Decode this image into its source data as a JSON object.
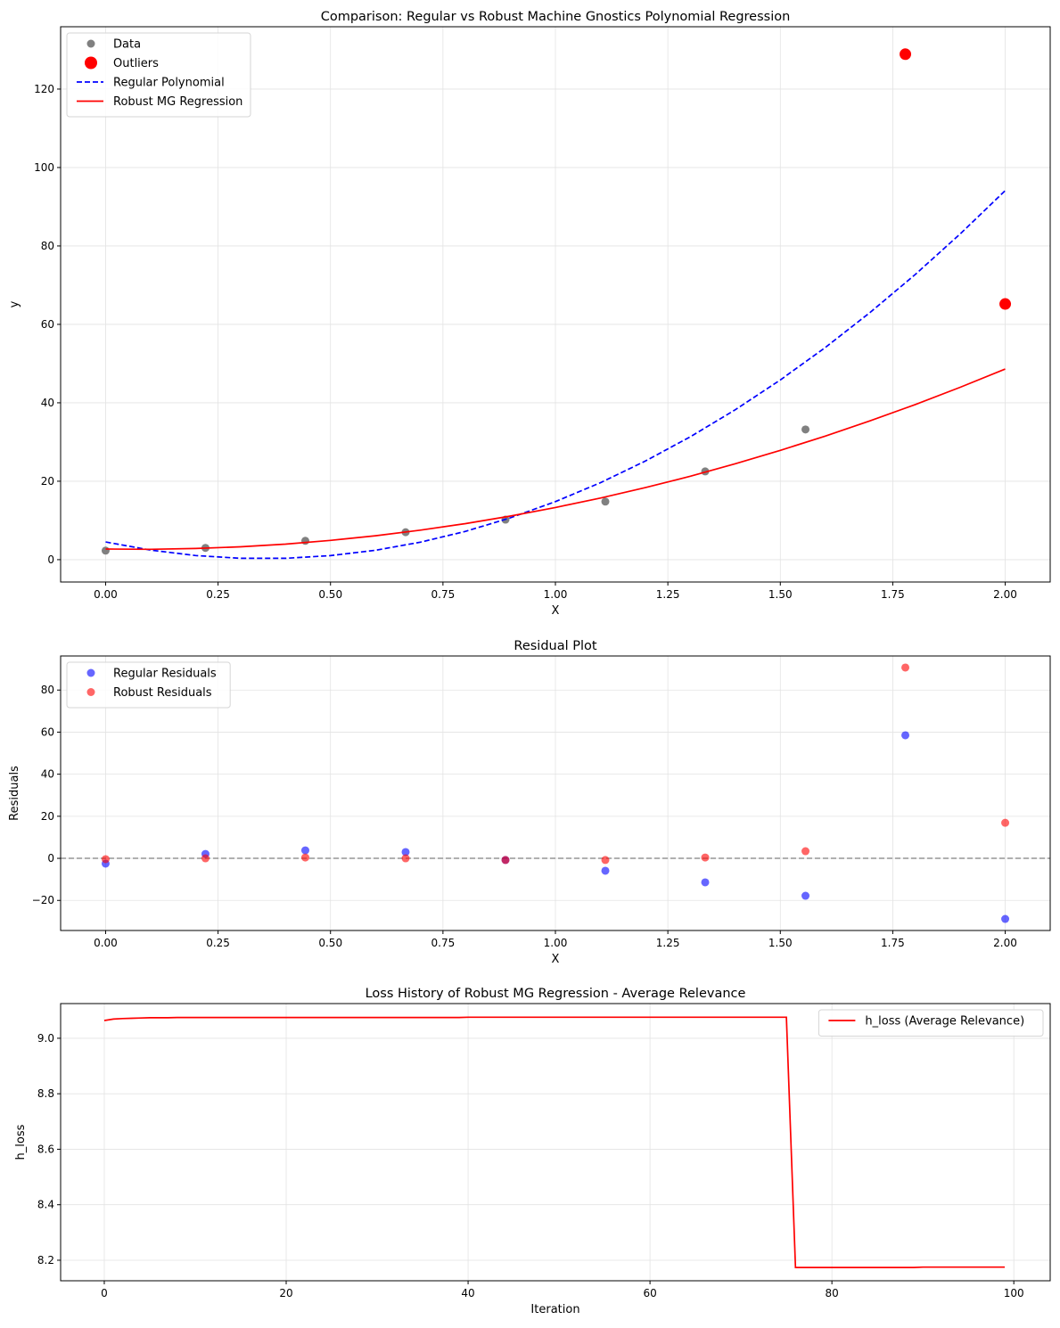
{
  "chart_data": [
    {
      "type": "scatter+line",
      "title": "Comparison: Regular vs Robust Machine Gnostics Polynomial Regression",
      "xlabel": "X",
      "ylabel": "y",
      "xlim": [
        -0.1,
        2.1
      ],
      "ylim": [
        -5.7,
        135.9
      ],
      "xticks": [
        "0.00",
        "0.25",
        "0.50",
        "0.75",
        "1.00",
        "1.25",
        "1.50",
        "1.75",
        "2.00"
      ],
      "yticks": [
        "0",
        "20",
        "40",
        "60",
        "80",
        "100",
        "120"
      ],
      "grid": true,
      "legend_position": "top-left",
      "series": [
        {
          "name": "Data",
          "kind": "scatter",
          "color": "#808080",
          "x": [
            0,
            0.222,
            0.444,
            0.667,
            0.889,
            1.111,
            1.333,
            1.556
          ],
          "y": [
            2.3,
            3.0,
            4.8,
            7.0,
            10.2,
            14.8,
            22.5,
            33.2
          ]
        },
        {
          "name": "Outliers",
          "kind": "scatter",
          "color": "#ff0000",
          "x": [
            1.778,
            2.0
          ],
          "y": [
            128.9,
            65.2
          ]
        },
        {
          "name": "Regular Polynomial",
          "kind": "dashed-line",
          "color": "#0000ff",
          "x": [
            0,
            0.1,
            0.2,
            0.3,
            0.4,
            0.5,
            0.6,
            0.7,
            0.8,
            0.9,
            1.0,
            1.1,
            1.2,
            1.3,
            1.4,
            1.5,
            1.6,
            1.7,
            1.8,
            1.9,
            2.0
          ],
          "y": [
            4.5,
            2.43,
            1.04,
            0.35,
            0.34,
            1.03,
            2.4,
            4.47,
            7.22,
            10.67,
            14.8,
            19.63,
            25.14,
            31.35,
            38.24,
            45.83,
            54.1,
            63.07,
            72.72,
            83.07,
            94.1
          ]
        },
        {
          "name": "Robust MG Regression",
          "kind": "line",
          "color": "#ff0000",
          "x": [
            0,
            0.1,
            0.2,
            0.3,
            0.4,
            0.5,
            0.6,
            0.7,
            0.8,
            0.9,
            1.0,
            1.1,
            1.2,
            1.3,
            1.4,
            1.5,
            1.6,
            1.7,
            1.8,
            1.9,
            2.0
          ],
          "y": [
            2.7,
            2.65,
            2.84,
            3.28,
            3.97,
            4.91,
            6.09,
            7.52,
            9.19,
            11.12,
            13.29,
            15.71,
            18.37,
            21.29,
            24.45,
            27.86,
            31.51,
            35.41,
            39.56,
            43.96,
            48.6
          ]
        }
      ]
    },
    {
      "type": "scatter",
      "title": "Residual Plot",
      "xlabel": "X",
      "ylabel": "Residuals",
      "xlim": [
        -0.1,
        2.1
      ],
      "ylim": [
        -34.3,
        96.2
      ],
      "xticks": [
        "0.00",
        "0.25",
        "0.50",
        "0.75",
        "1.00",
        "1.25",
        "1.50",
        "1.75",
        "2.00"
      ],
      "yticks": [
        "−20",
        "0",
        "20",
        "40",
        "60",
        "80"
      ],
      "grid": true,
      "legend_position": "top-left",
      "zero_line_color": "#808080",
      "series": [
        {
          "name": "Regular Residuals",
          "kind": "scatter",
          "color": "#0000ff",
          "x": [
            0,
            0.222,
            0.444,
            0.667,
            0.889,
            1.111,
            1.333,
            1.556,
            1.778,
            2.0
          ],
          "y": [
            -2.5,
            2.1,
            3.8,
            3.0,
            -0.8,
            -5.9,
            -11.4,
            -17.8,
            58.5,
            -28.8
          ]
        },
        {
          "name": "Robust Residuals",
          "kind": "scatter",
          "color": "#ff0000",
          "x": [
            0,
            0.222,
            0.444,
            0.667,
            0.889,
            1.111,
            1.333,
            1.556,
            1.778,
            2.0
          ],
          "y": [
            -0.4,
            0,
            0.4,
            0,
            -0.8,
            -0.8,
            0.4,
            3.4,
            90.7,
            16.9
          ]
        }
      ]
    },
    {
      "type": "line",
      "title": "Loss History of Robust MG Regression - Average Relevance",
      "xlabel": "Iteration",
      "ylabel": "h_loss",
      "xlim": [
        -4.8,
        104
      ],
      "ylim": [
        8.126,
        9.125
      ],
      "xticks": [
        "0",
        "20",
        "40",
        "60",
        "80",
        "100"
      ],
      "yticks": [
        "8.2",
        "8.4",
        "8.6",
        "8.8",
        "9.0"
      ],
      "grid": true,
      "legend_position": "top-right",
      "series": [
        {
          "name": "h_loss (Average Relevance)",
          "kind": "line",
          "color": "#ff0000",
          "y": [
            9.064,
            9.069,
            9.071,
            9.072,
            9.073,
            9.074,
            9.074,
            9.074,
            9.075,
            9.075,
            9.075,
            9.075,
            9.075,
            9.075,
            9.075,
            9.075,
            9.075,
            9.075,
            9.075,
            9.075,
            9.075,
            9.075,
            9.075,
            9.075,
            9.075,
            9.075,
            9.075,
            9.075,
            9.075,
            9.075,
            9.075,
            9.075,
            9.075,
            9.075,
            9.075,
            9.075,
            9.075,
            9.075,
            9.075,
            9.075,
            9.076,
            9.076,
            9.076,
            9.076,
            9.076,
            9.076,
            9.076,
            9.076,
            9.076,
            9.076,
            9.076,
            9.076,
            9.076,
            9.076,
            9.076,
            9.076,
            9.076,
            9.076,
            9.076,
            9.076,
            9.076,
            9.076,
            9.076,
            9.076,
            9.076,
            9.076,
            9.076,
            9.076,
            9.076,
            9.076,
            9.076,
            9.076,
            9.076,
            9.076,
            9.076,
            9.076,
            8.174,
            8.174,
            8.174,
            8.174,
            8.174,
            8.174,
            8.174,
            8.174,
            8.174,
            8.174,
            8.174,
            8.174,
            8.174,
            8.174,
            8.175,
            8.175,
            8.175,
            8.175,
            8.175,
            8.175,
            8.175,
            8.175,
            8.175,
            8.175
          ]
        }
      ]
    }
  ]
}
